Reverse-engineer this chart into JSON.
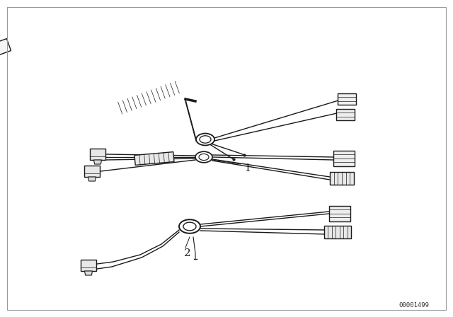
{
  "bg_color": "#ffffff",
  "line_color": "#1a1a1a",
  "label1": "1",
  "label2": "2",
  "watermark": "00001499",
  "fig_width": 6.4,
  "fig_height": 4.48,
  "dpi": 100
}
